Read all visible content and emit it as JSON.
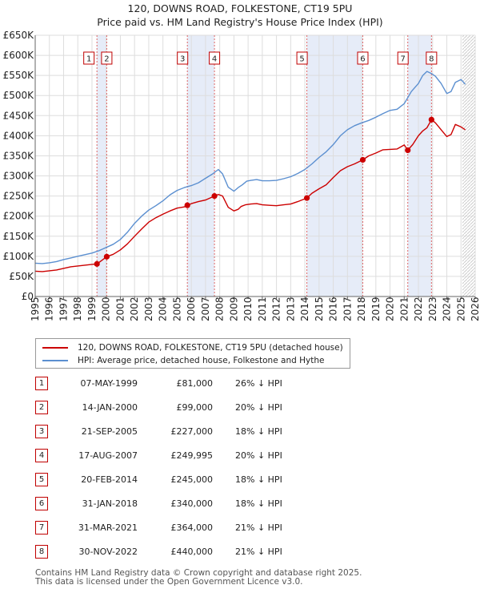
{
  "title": {
    "line1": "120, DOWNS ROAD, FOLKESTONE, CT19 5PU",
    "line2": "Price paid vs. HM Land Registry's House Price Index (HPI)"
  },
  "colors": {
    "price_line": "#cc0000",
    "hpi_line": "#5b8fd0",
    "sale_band": "#e6ecf8",
    "marker_line": "#dd6666",
    "grid": "#dddddd",
    "forecast_hatch": "#aaaaaa"
  },
  "legend": {
    "price_label": "120, DOWNS ROAD, FOLKESTONE, CT19 5PU (detached house)",
    "hpi_label": "HPI: Average price, detached house, Folkestone and Hythe"
  },
  "sales": [
    {
      "num": "1",
      "date": "07-MAY-1999",
      "price": "£81,000",
      "hpi": "26% ↓ HPI"
    },
    {
      "num": "2",
      "date": "14-JAN-2000",
      "price": "£99,000",
      "hpi": "20% ↓ HPI"
    },
    {
      "num": "3",
      "date": "21-SEP-2005",
      "price": "£227,000",
      "hpi": "18% ↓ HPI"
    },
    {
      "num": "4",
      "date": "17-AUG-2007",
      "price": "£249,995",
      "hpi": "20% ↓ HPI"
    },
    {
      "num": "5",
      "date": "20-FEB-2014",
      "price": "£245,000",
      "hpi": "18% ↓ HPI"
    },
    {
      "num": "6",
      "date": "31-JAN-2018",
      "price": "£340,000",
      "hpi": "18% ↓ HPI"
    },
    {
      "num": "7",
      "date": "31-MAR-2021",
      "price": "£364,000",
      "hpi": "21% ↓ HPI"
    },
    {
      "num": "8",
      "date": "30-NOV-2022",
      "price": "£440,000",
      "hpi": "21% ↓ HPI"
    }
  ],
  "footer": {
    "line1": "Contains HM Land Registry data © Crown copyright and database right 2025.",
    "line2": "This data is licensed under the Open Government Licence v3.0."
  },
  "chart_data": {
    "type": "line",
    "xlim": [
      1995,
      2026
    ],
    "ylim": [
      0,
      650000
    ],
    "y_ticks": [
      {
        "v": 0,
        "label": "£0"
      },
      {
        "v": 50000,
        "label": "£50K"
      },
      {
        "v": 100000,
        "label": "£100K"
      },
      {
        "v": 150000,
        "label": "£150K"
      },
      {
        "v": 200000,
        "label": "£200K"
      },
      {
        "v": 250000,
        "label": "£250K"
      },
      {
        "v": 300000,
        "label": "£300K"
      },
      {
        "v": 350000,
        "label": "£350K"
      },
      {
        "v": 400000,
        "label": "£400K"
      },
      {
        "v": 450000,
        "label": "£450K"
      },
      {
        "v": 500000,
        "label": "£500K"
      },
      {
        "v": 550000,
        "label": "£550K"
      },
      {
        "v": 600000,
        "label": "£600K"
      },
      {
        "v": 650000,
        "label": "£650K"
      }
    ],
    "x_ticks": [
      "1995",
      "1996",
      "1997",
      "1998",
      "1999",
      "2000",
      "2001",
      "2002",
      "2003",
      "2004",
      "2005",
      "2006",
      "2007",
      "2008",
      "2009",
      "2010",
      "2011",
      "2012",
      "2013",
      "2014",
      "2015",
      "2016",
      "2017",
      "2018",
      "2019",
      "2020",
      "2021",
      "2022",
      "2023",
      "2024",
      "2025",
      "2026"
    ],
    "grid": true,
    "forecast_start": 2025.1,
    "sale_bands": [
      [
        1999.35,
        2000.04
      ],
      [
        2005.72,
        2007.63
      ],
      [
        2014.14,
        2018.08
      ],
      [
        2021.25,
        2022.92
      ]
    ],
    "sale_points": [
      {
        "num": "1",
        "x": 1999.35,
        "y": 81000
      },
      {
        "num": "2",
        "x": 2000.04,
        "y": 99000
      },
      {
        "num": "3",
        "x": 2005.72,
        "y": 227000
      },
      {
        "num": "4",
        "x": 2007.63,
        "y": 249995
      },
      {
        "num": "5",
        "x": 2014.14,
        "y": 245000
      },
      {
        "num": "6",
        "x": 2018.08,
        "y": 340000
      },
      {
        "num": "7",
        "x": 2021.25,
        "y": 364000
      },
      {
        "num": "8",
        "x": 2022.92,
        "y": 440000
      }
    ],
    "series": [
      {
        "name": "120, DOWNS ROAD, FOLKESTONE, CT19 5PU (detached house)",
        "x": [
          1995.0,
          1995.5,
          1996.0,
          1996.5,
          1997.0,
          1997.5,
          1998.0,
          1998.5,
          1999.0,
          1999.35,
          2000.04,
          2000.5,
          2001.0,
          2001.5,
          2002.0,
          2002.5,
          2003.0,
          2003.5,
          2004.0,
          2004.5,
          2005.0,
          2005.5,
          2005.72,
          2006.0,
          2006.5,
          2007.0,
          2007.63,
          2007.9,
          2008.2,
          2008.6,
          2009.0,
          2009.3,
          2009.5,
          2009.8,
          2010.2,
          2010.6,
          2011.0,
          2011.5,
          2012.0,
          2012.5,
          2013.0,
          2013.5,
          2014.14,
          2014.5,
          2015.0,
          2015.5,
          2016.0,
          2016.5,
          2017.0,
          2017.5,
          2018.08,
          2018.5,
          2019.0,
          2019.5,
          2020.0,
          2020.5,
          2021.0,
          2021.25,
          2021.6,
          2022.0,
          2022.3,
          2022.6,
          2022.92,
          2023.2,
          2023.6,
          2024.0,
          2024.3,
          2024.6,
          2025.0,
          2025.3
        ],
        "y": [
          63000,
          62000,
          64000,
          66000,
          70000,
          74000,
          76000,
          78000,
          80000,
          81000,
          99000,
          105000,
          116000,
          131000,
          150000,
          168000,
          185000,
          196000,
          205000,
          213000,
          220000,
          223000,
          227000,
          231000,
          236000,
          240000,
          249995,
          254000,
          250000,
          222000,
          213000,
          217000,
          224000,
          228000,
          230000,
          231000,
          228000,
          227000,
          226000,
          228000,
          230000,
          236000,
          245000,
          257000,
          268000,
          278000,
          296000,
          313000,
          323000,
          330000,
          340000,
          350000,
          357000,
          365000,
          366000,
          367000,
          377000,
          364000,
          378000,
          400000,
          412000,
          420000,
          440000,
          432000,
          415000,
          398000,
          403000,
          428000,
          422000,
          415000
        ]
      },
      {
        "name": "HPI: Average price, detached house, Folkestone and Hythe",
        "x": [
          1995.0,
          1995.5,
          1996.0,
          1996.5,
          1997.0,
          1997.5,
          1998.0,
          1998.5,
          1999.0,
          1999.5,
          2000.0,
          2000.5,
          2001.0,
          2001.5,
          2002.0,
          2002.5,
          2003.0,
          2003.5,
          2004.0,
          2004.5,
          2005.0,
          2005.5,
          2006.0,
          2006.5,
          2007.0,
          2007.5,
          2007.9,
          2008.2,
          2008.6,
          2009.0,
          2009.3,
          2009.6,
          2009.9,
          2010.2,
          2010.6,
          2011.0,
          2011.5,
          2012.0,
          2012.5,
          2013.0,
          2013.5,
          2014.0,
          2014.5,
          2015.0,
          2015.5,
          2016.0,
          2016.5,
          2017.0,
          2017.5,
          2018.0,
          2018.5,
          2019.0,
          2019.5,
          2020.0,
          2020.5,
          2021.0,
          2021.5,
          2022.0,
          2022.3,
          2022.6,
          2022.9,
          2023.2,
          2023.6,
          2024.0,
          2024.3,
          2024.6,
          2025.0,
          2025.3
        ],
        "y": [
          83000,
          82000,
          84000,
          87000,
          92000,
          96000,
          100000,
          104000,
          108000,
          114000,
          122000,
          130000,
          142000,
          160000,
          182000,
          200000,
          215000,
          226000,
          238000,
          253000,
          264000,
          271000,
          276000,
          283000,
          294000,
          305000,
          316000,
          305000,
          272000,
          262000,
          271000,
          278000,
          287000,
          289000,
          291000,
          288000,
          288000,
          289000,
          293000,
          298000,
          306000,
          316000,
          330000,
          346000,
          360000,
          378000,
          400000,
          415000,
          425000,
          432000,
          438000,
          446000,
          455000,
          463000,
          466000,
          480000,
          510000,
          530000,
          550000,
          560000,
          555000,
          548000,
          530000,
          505000,
          510000,
          533000,
          540000,
          528000
        ]
      }
    ]
  }
}
